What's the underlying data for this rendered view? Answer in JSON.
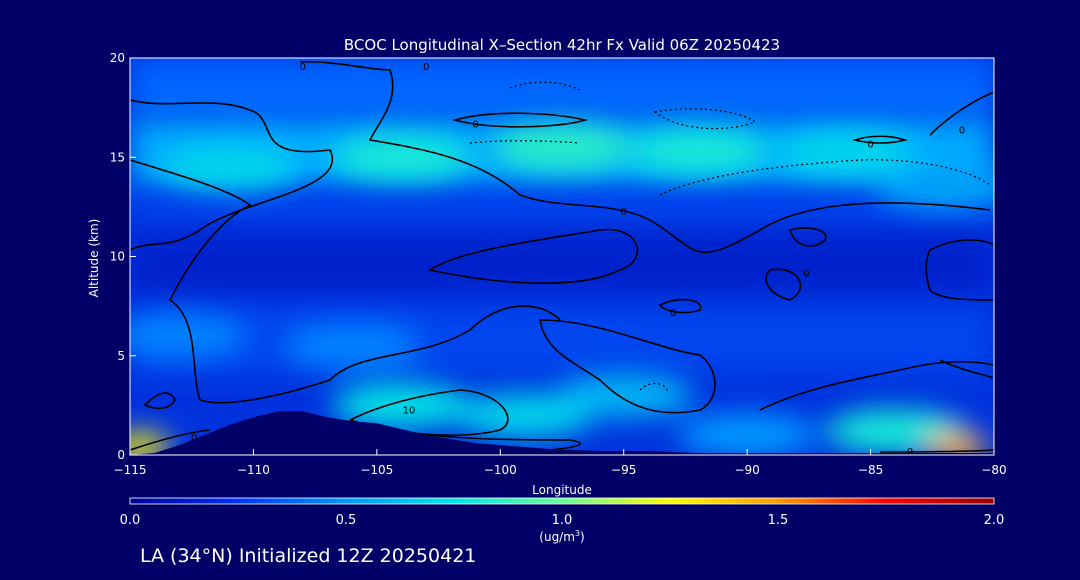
{
  "chart_data": {
    "type": "heatmap",
    "title": "BCOC Longitudinal X–Section 42hr  Fx Valid 06Z 20250423",
    "xlabel": "Longitude",
    "ylabel": "Altitude (km)",
    "xlim": [
      -115,
      -80
    ],
    "ylim": [
      0,
      20
    ],
    "x_ticks": [
      -115,
      -110,
      -105,
      -100,
      -95,
      -90,
      -85,
      -80
    ],
    "x_tick_labels": [
      "−115",
      "−110",
      "−105",
      "−100",
      "−95",
      "−90",
      "−85",
      "−80"
    ],
    "y_ticks": [
      0,
      5,
      10,
      15,
      20
    ],
    "y_tick_labels": [
      "0",
      "5",
      "10",
      "15",
      "20"
    ],
    "grid": false,
    "colorbar": {
      "range": [
        0.0,
        2.0
      ],
      "ticks": [
        0.0,
        0.5,
        1.0,
        1.5,
        2.0
      ],
      "tick_labels": [
        "0.0",
        "0.5",
        "1.0",
        "1.5",
        "2.0"
      ],
      "unit_label": "(ug/m",
      "unit_sup": "3",
      "unit_close": ")",
      "colors": [
        "#000099",
        "#0033ff",
        "#0099ff",
        "#00e6e6",
        "#66ff99",
        "#ffff00",
        "#ff9900",
        "#ff0000",
        "#990000"
      ]
    },
    "terrain_km": [
      [
        -115,
        0.0
      ],
      [
        -114,
        0.1
      ],
      [
        -113,
        0.5
      ],
      [
        -112,
        1.0
      ],
      [
        -111,
        1.5
      ],
      [
        -110,
        1.9
      ],
      [
        -109,
        2.2
      ],
      [
        -108,
        2.2
      ],
      [
        -107,
        1.9
      ],
      [
        -106,
        1.7
      ],
      [
        -105,
        1.6
      ],
      [
        -104,
        1.3
      ],
      [
        -103,
        1.0
      ],
      [
        -102,
        0.8
      ],
      [
        -101,
        0.6
      ],
      [
        -100,
        0.5
      ],
      [
        -99,
        0.4
      ],
      [
        -98,
        0.3
      ],
      [
        -96,
        0.2
      ],
      [
        -94,
        0.2
      ],
      [
        -92,
        0.1
      ],
      [
        -90,
        0.1
      ],
      [
        -85,
        0.1
      ],
      [
        -80,
        0.1
      ]
    ],
    "concentration_features": [
      {
        "lon": -97.5,
        "alt": 15.5,
        "value": 0.85
      },
      {
        "lon": -92,
        "alt": 15.3,
        "value": 0.8
      },
      {
        "lon": -104,
        "alt": 15.0,
        "value": 0.8
      },
      {
        "lon": -86,
        "alt": 15.2,
        "value": 0.7
      },
      {
        "lon": -111,
        "alt": 14.5,
        "value": 0.7
      },
      {
        "lon": -82,
        "alt": 13.5,
        "value": 0.55
      },
      {
        "lon": -99,
        "alt": 2.0,
        "value": 0.7
      },
      {
        "lon": -104,
        "alt": 2.5,
        "value": 0.75
      },
      {
        "lon": -95,
        "alt": 3.0,
        "value": 0.6
      },
      {
        "lon": -90,
        "alt": 1.0,
        "value": 0.5
      },
      {
        "lon": -84,
        "alt": 1.2,
        "value": 0.8
      },
      {
        "lon": -81.5,
        "alt": 0.4,
        "value": 1.45
      },
      {
        "lon": -114.6,
        "alt": 0.4,
        "value": 1.3
      },
      {
        "lon": -113,
        "alt": 6.0,
        "value": 0.45
      },
      {
        "lon": -106,
        "alt": 5.5,
        "value": 0.45
      }
    ],
    "contour_labels": [
      {
        "text": "0",
        "lon": -108,
        "alt": 19.6
      },
      {
        "text": "0",
        "lon": -103,
        "alt": 19.6
      },
      {
        "text": "0",
        "lon": -101,
        "alt": 16.7
      },
      {
        "text": "0",
        "lon": -85,
        "alt": 15.7
      },
      {
        "text": "0",
        "lon": -81.3,
        "alt": 16.4
      },
      {
        "text": "0",
        "lon": -95,
        "alt": 12.3
      },
      {
        "text": "0",
        "lon": -87.6,
        "alt": 9.2
      },
      {
        "text": "0",
        "lon": -93,
        "alt": 7.2
      },
      {
        "text": "0",
        "lon": -112.4,
        "alt": 0.9
      },
      {
        "text": "0",
        "lon": -83.4,
        "alt": 0.2
      },
      {
        "text": "10",
        "lon": -103.7,
        "alt": 2.3
      }
    ]
  },
  "footer": {
    "station_text": "LA (34°N) Initialized 12Z 20250421"
  }
}
